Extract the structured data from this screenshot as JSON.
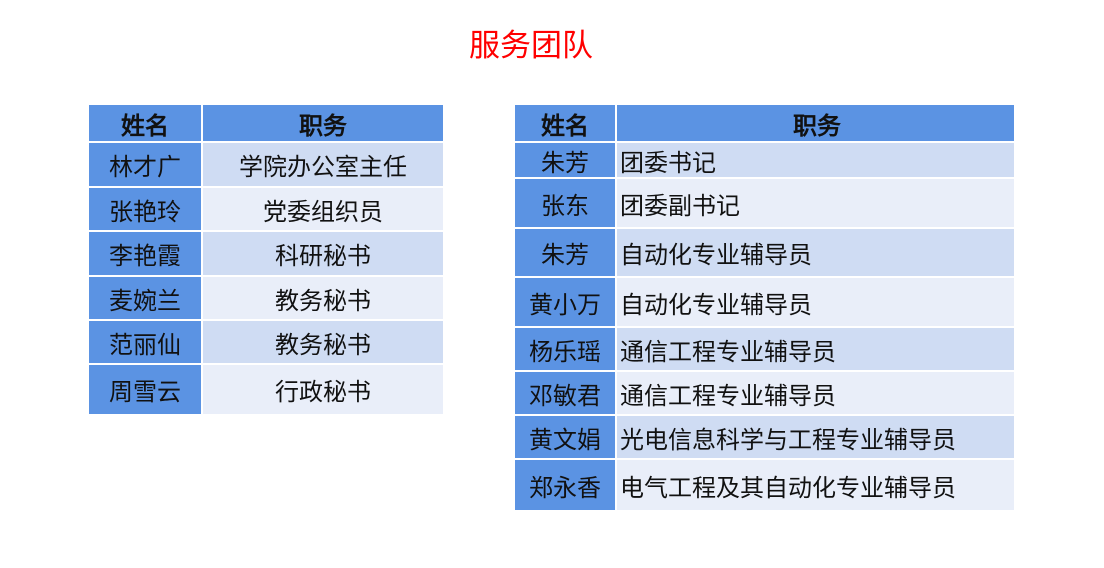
{
  "title": "服务团队",
  "colors": {
    "title": "#ff0000",
    "header": "#5b93e3",
    "row_odd": "#cfdcf3",
    "row_even": "#e9eef9"
  },
  "left_table": {
    "headers": [
      "姓名",
      "职务"
    ],
    "rows": [
      {
        "name": "林才广",
        "role": "学院办公室主任"
      },
      {
        "name": "张艳玲",
        "role": "党委组织员"
      },
      {
        "name": "李艳霞",
        "role": "科研秘书"
      },
      {
        "name": "麦婉兰",
        "role": "教务秘书"
      },
      {
        "name": "范丽仙",
        "role": "教务秘书"
      },
      {
        "name": "周雪云",
        "role": "行政秘书"
      }
    ]
  },
  "right_table": {
    "headers": [
      "姓名",
      "职务"
    ],
    "rows": [
      {
        "name": "朱芳",
        "role": "团委书记"
      },
      {
        "name": "张东",
        "role": "团委副书记"
      },
      {
        "name": "朱芳",
        "role": "自动化专业辅导员"
      },
      {
        "name": "黄小万",
        "role": "自动化专业辅导员"
      },
      {
        "name": "杨乐瑶",
        "role": "通信工程专业辅导员"
      },
      {
        "name": "邓敏君",
        "role": "通信工程专业辅导员"
      },
      {
        "name": "黄文娟",
        "role": "光电信息科学与工程专业辅导员"
      },
      {
        "name": "郑永香",
        "role": "电气工程及其自动化专业辅导员"
      }
    ]
  }
}
